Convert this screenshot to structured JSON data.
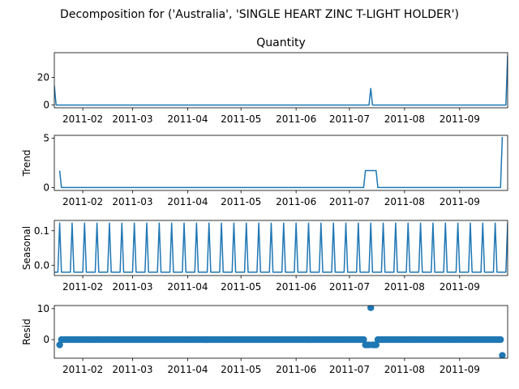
{
  "figure": {
    "suptitle": "Decomposition for ('Australia', 'SINGLE HEART ZINC T-LIGHT HOLDER')"
  },
  "colors": {
    "line": "#1f77b4",
    "marker": "#1f77b4",
    "axes": "#000000"
  },
  "chart_data": [
    {
      "type": "line",
      "title": "Quantity",
      "ylabel": "",
      "ylim": [
        -2,
        38
      ],
      "yticks": [
        "0",
        "20"
      ],
      "xticks": [
        "2011-02",
        "2011-03",
        "2011-04",
        "2011-05",
        "2011-06",
        "2011-07",
        "2011-08",
        "2011-09"
      ],
      "xlim": [
        "2011-01-16",
        "2011-09-28"
      ],
      "series": [
        {
          "points": [
            [
              "2011-01-16",
              14
            ],
            [
              "2011-01-17",
              0
            ],
            [
              "2011-07-12",
              0
            ],
            [
              "2011-07-13",
              12
            ],
            [
              "2011-07-14",
              0
            ],
            [
              "2011-09-27",
              0
            ],
            [
              "2011-09-28",
              36
            ]
          ]
        }
      ]
    },
    {
      "type": "line",
      "title": "",
      "ylabel": "Trend",
      "ylim": [
        -0.3,
        5.3
      ],
      "yticks": [
        "0",
        "5"
      ],
      "xticks": [
        "2011-02",
        "2011-03",
        "2011-04",
        "2011-05",
        "2011-06",
        "2011-07",
        "2011-08",
        "2011-09"
      ],
      "xlim": [
        "2011-01-16",
        "2011-09-28"
      ],
      "series": [
        {
          "points": [
            [
              "2011-01-19",
              1.714
            ],
            [
              "2011-01-20",
              0
            ],
            [
              "2011-07-09",
              0
            ],
            [
              "2011-07-10",
              1.714
            ],
            [
              "2011-07-16",
              1.714
            ],
            [
              "2011-07-17",
              0
            ],
            [
              "2011-09-24",
              0
            ],
            [
              "2011-09-25",
              5.14
            ]
          ]
        }
      ]
    },
    {
      "type": "line",
      "title": "",
      "ylabel": "Seasonal",
      "ylim": [
        -0.03,
        0.13
      ],
      "yticks": [
        "0.0",
        "0.1"
      ],
      "xticks": [
        "2011-02",
        "2011-03",
        "2011-04",
        "2011-05",
        "2011-06",
        "2011-07",
        "2011-08",
        "2011-09"
      ],
      "xlim": [
        "2011-01-16",
        "2011-09-28"
      ],
      "series": [
        {
          "periodic": {
            "start": "2011-01-16",
            "end": "2011-09-28",
            "period_days": 7,
            "peak_offset_days": 3,
            "low": -0.0204,
            "high": 0.1224
          }
        }
      ]
    },
    {
      "type": "scatter",
      "title": "",
      "ylabel": "Resid",
      "ylim": [
        -6,
        11
      ],
      "yticks": [
        "0",
        "10"
      ],
      "xticks": [
        "2011-02",
        "2011-03",
        "2011-04",
        "2011-05",
        "2011-06",
        "2011-07",
        "2011-08",
        "2011-09"
      ],
      "xlim": [
        "2011-01-16",
        "2011-09-28"
      ],
      "series": [
        {
          "range": {
            "start": "2011-01-19",
            "end": "2011-09-25",
            "default": 0
          },
          "overrides": [
            [
              "2011-01-19",
              -1.7
            ],
            [
              "2011-07-10",
              -1.7
            ],
            [
              "2011-07-11",
              -1.7
            ],
            [
              "2011-07-12",
              -1.7
            ],
            [
              "2011-07-13",
              10.3
            ],
            [
              "2011-07-14",
              -1.7
            ],
            [
              "2011-07-15",
              -1.7
            ],
            [
              "2011-07-16",
              -1.7
            ],
            [
              "2011-09-25",
              -5.1
            ]
          ]
        }
      ]
    }
  ]
}
